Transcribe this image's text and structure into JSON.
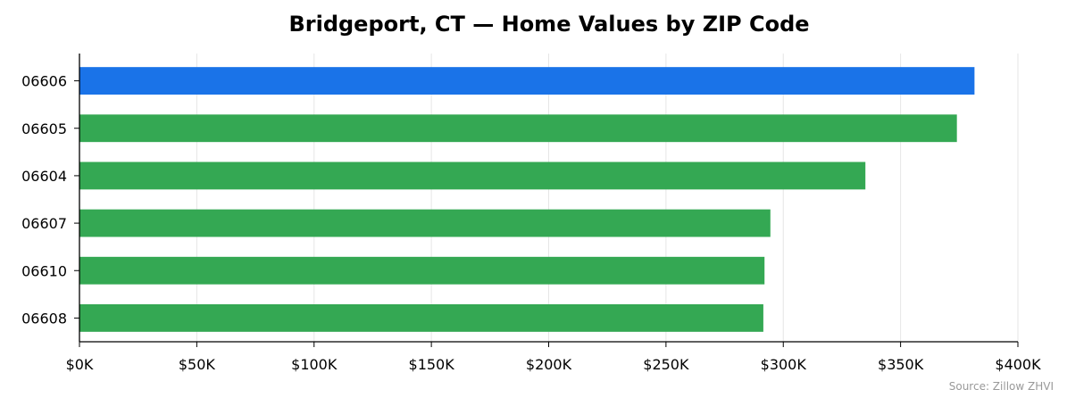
{
  "chart_data": {
    "type": "bar",
    "orientation": "horizontal",
    "title": "Bridgeport, CT — Home Values by ZIP Code",
    "categories": [
      "06606",
      "06605",
      "06604",
      "06607",
      "06610",
      "06608"
    ],
    "values": [
      381500,
      374000,
      335000,
      294500,
      292000,
      291500
    ],
    "xlim": [
      0,
      400000
    ],
    "xticks": [
      0,
      50000,
      100000,
      150000,
      200000,
      250000,
      300000,
      350000,
      400000
    ],
    "xtick_labels": [
      "$0K",
      "$50K",
      "$100K",
      "$150K",
      "$200K",
      "$250K",
      "$300K",
      "$350K",
      "$400K"
    ],
    "grid": "vertical",
    "colors": {
      "highlight": "#1a73e8",
      "default": "#34a853",
      "grid": "#e6e6e6",
      "axis": "#000000"
    },
    "source": "Source: Zillow ZHVI"
  }
}
